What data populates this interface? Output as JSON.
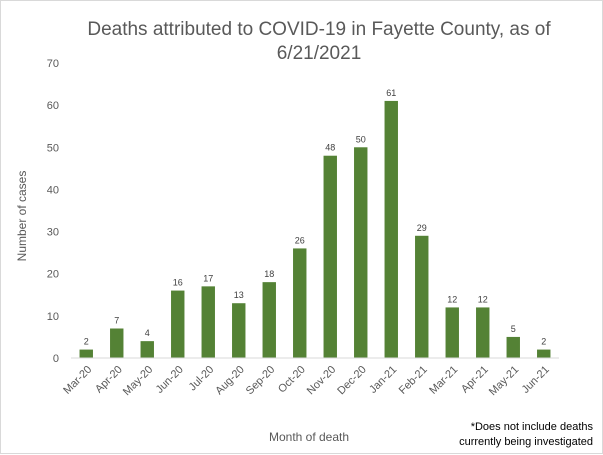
{
  "chart_data": {
    "type": "bar",
    "title_lines": [
      "Deaths attributed to COVID-19 in Fayette County, as of",
      "6/21/2021"
    ],
    "xlabel": "Month of death",
    "ylabel": "Number of cases",
    "categories": [
      "Mar-20",
      "Apr-20",
      "May-20",
      "Jun-20",
      "Jul-20",
      "Aug-20",
      "Sep-20",
      "Oct-20",
      "Nov-20",
      "Dec-20",
      "Jan-21",
      "Feb-21",
      "Mar-21",
      "Apr-21",
      "May-21",
      "Jun-21"
    ],
    "values": [
      2,
      7,
      4,
      16,
      17,
      13,
      18,
      26,
      48,
      50,
      61,
      29,
      12,
      12,
      5,
      2
    ],
    "ylim": [
      0,
      70
    ],
    "yticks": [
      0,
      10,
      20,
      30,
      40,
      50,
      60,
      70
    ],
    "grid": false,
    "bar_color": "#548235",
    "note_lines": [
      "*Does not include deaths",
      "currently being investigated"
    ]
  }
}
